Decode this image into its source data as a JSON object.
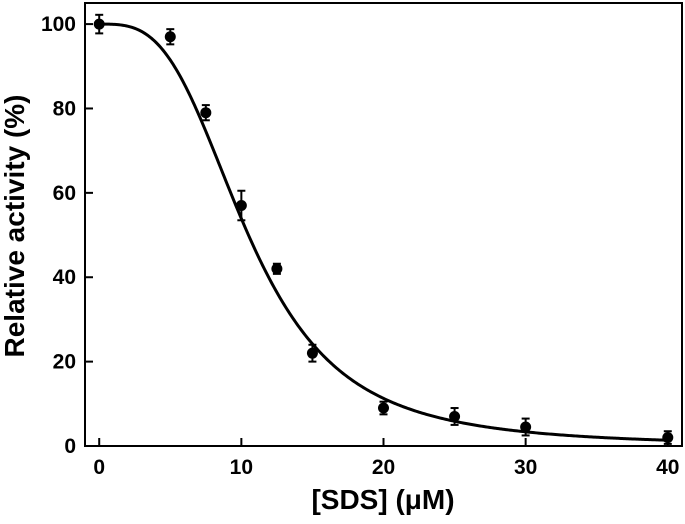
{
  "chart_data": {
    "type": "scatter",
    "title": "",
    "xlabel": "[SDS] (μM)",
    "ylabel": "Relative activity (%)",
    "xlim": [
      -1,
      41
    ],
    "ylim": [
      0,
      105
    ],
    "xticks": [
      0,
      10,
      20,
      30,
      40
    ],
    "yticks": [
      0,
      20,
      40,
      60,
      80,
      100
    ],
    "grid": false,
    "legend": "none",
    "series": [
      {
        "x": [
          0,
          5,
          7.5,
          10,
          12.5,
          15,
          20,
          25,
          30,
          40
        ],
        "y": [
          100,
          97,
          79,
          57,
          42,
          22,
          9,
          7,
          4.5,
          2
        ],
        "error": [
          2.2,
          1.8,
          1.8,
          3.5,
          1.2,
          2.0,
          1.5,
          2.0,
          2.0,
          1.5
        ]
      }
    ],
    "fit_curve": {
      "type": "sigmoidal-fit",
      "top": 100,
      "bottom": 0,
      "x50": 10.5,
      "hill": 3.2
    }
  }
}
